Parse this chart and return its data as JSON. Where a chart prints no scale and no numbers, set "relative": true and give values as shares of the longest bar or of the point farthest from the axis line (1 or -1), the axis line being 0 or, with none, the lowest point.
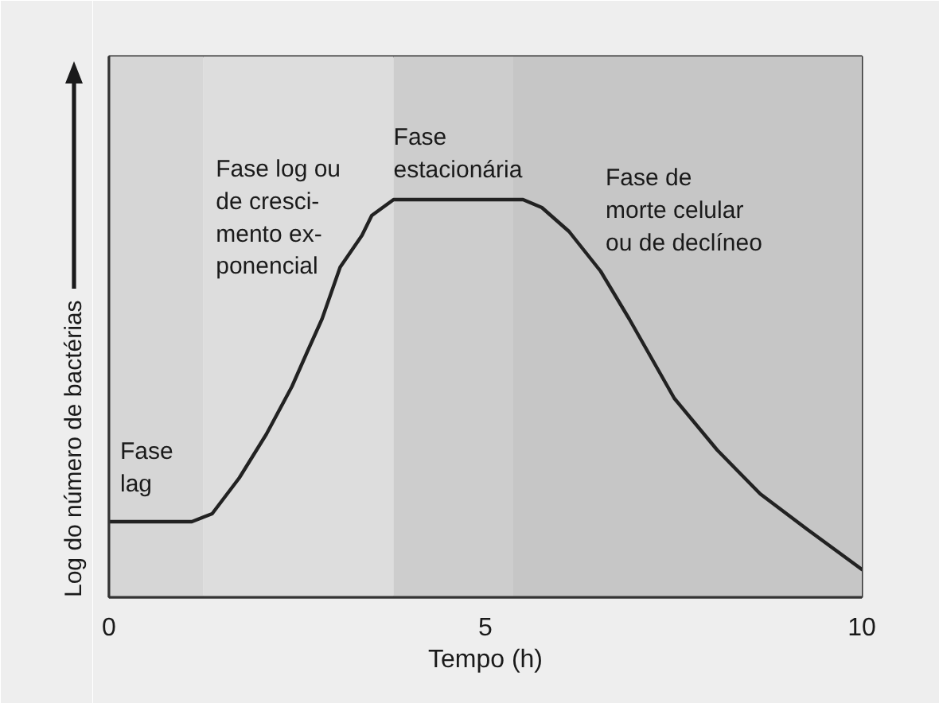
{
  "chart_data": {
    "type": "line",
    "relative": true,
    "xlabel": "Tempo (h)",
    "ylabel": "Log do número de bactérias",
    "xlim": [
      0,
      10
    ],
    "xticks": [
      0,
      5,
      10
    ],
    "grid": false,
    "x": [
      0,
      1.1,
      1.37,
      1.73,
      2.09,
      2.43,
      2.64,
      2.83,
      3.07,
      3.36,
      3.49,
      3.78,
      5.5,
      5.75,
      6.11,
      6.53,
      6.91,
      7.51,
      8.08,
      8.65,
      9.28,
      10
    ],
    "series": [
      {
        "color": "#222222",
        "values": [
          0.19,
          0.19,
          0.21,
          0.3,
          0.41,
          0.53,
          0.62,
          0.7,
          0.83,
          0.91,
          0.96,
          1,
          1,
          0.98,
          0.92,
          0.82,
          0.7,
          0.5,
          0.37,
          0.26,
          0.17,
          0.07
        ]
      }
    ],
    "bands": [
      {
        "axis": "x",
        "from": 0,
        "to": 1.25,
        "label": "Fase\nlag",
        "color": "#d6d6d6"
      },
      {
        "axis": "x",
        "from": 1.25,
        "to": 3.78,
        "label": "Fase log ou\nde cresci-\nmento ex-\nponencial",
        "color": "#dddddd"
      },
      {
        "axis": "x",
        "from": 3.78,
        "to": 5.37,
        "label": "Fase\nestacionária",
        "color": "#cdcdcd"
      },
      {
        "axis": "x",
        "from": 5.37,
        "to": 10,
        "label": "Fase de\nmorte celular\nou de declíneo",
        "color": "#c6c6c6"
      }
    ]
  }
}
